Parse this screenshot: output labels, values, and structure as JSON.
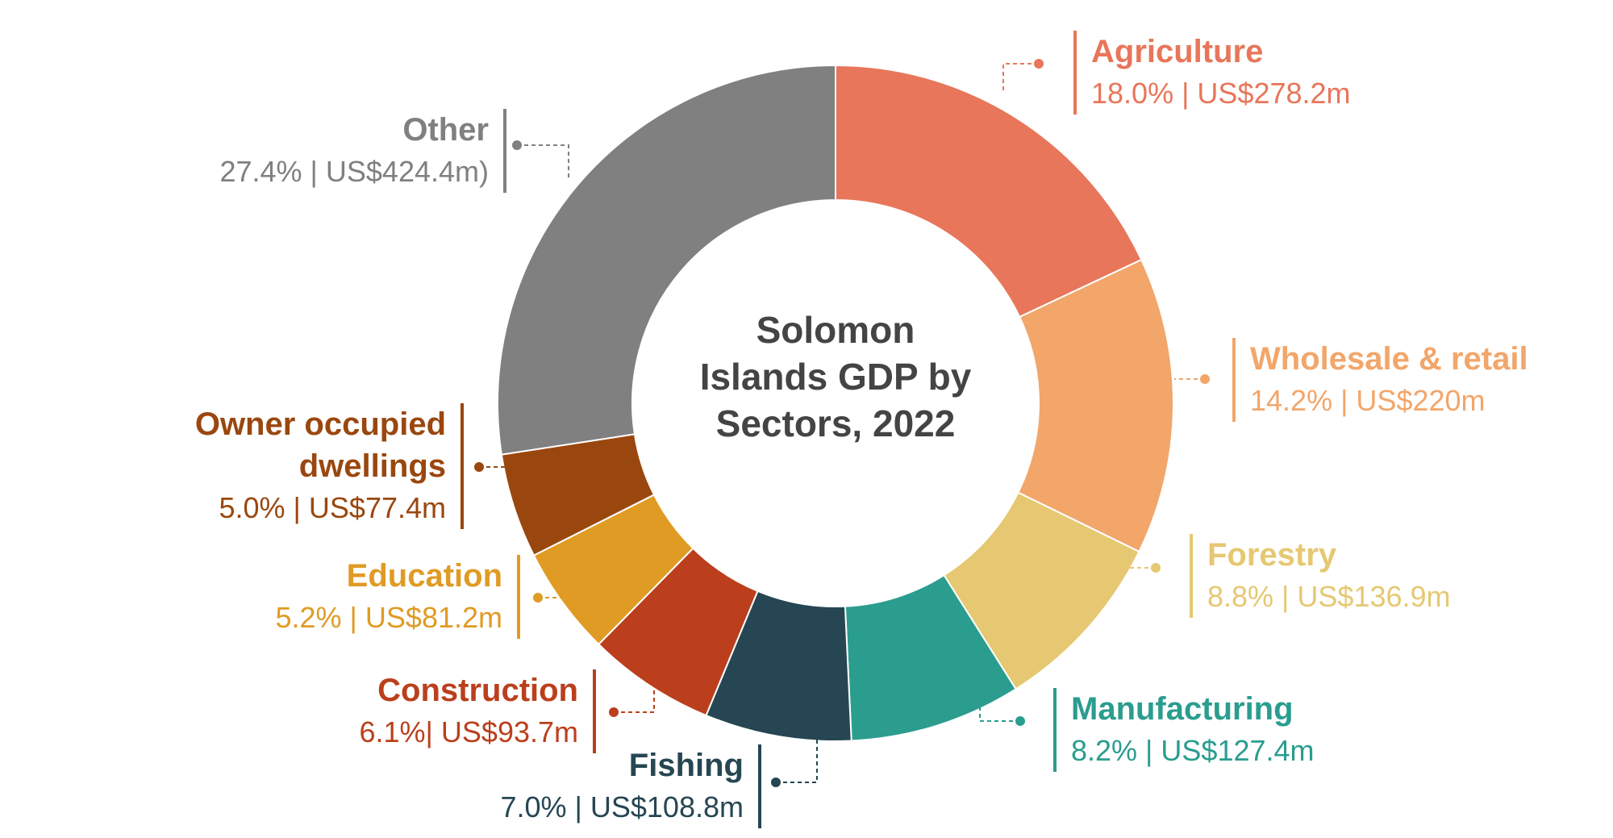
{
  "chart_data": {
    "type": "pie",
    "donut": true,
    "title": "Solomon Islands GDP by Sectors, 2022",
    "categories": [
      "Agriculture",
      "Wholesale & retail",
      "Forestry",
      "Manufacturing",
      "Fishing",
      "Construction",
      "Education",
      "Owner occupied dwellings",
      "Other"
    ],
    "values": [
      18.0,
      14.2,
      8.8,
      8.2,
      7.0,
      6.1,
      5.2,
      5.0,
      27.4
    ],
    "value_labels": [
      "18.0% | US$278.2m",
      "14.2% | US$220m",
      "8.8% | US$136.9m",
      "8.2% | US$127.4m",
      "7.0% | US$108.8m",
      "6.1%| US$93.7m",
      "5.2% | US$81.2m",
      "5.0% | US$77.4m",
      "27.4% | US$424.4m)"
    ],
    "colors": [
      "#e8765a",
      "#f2a66a",
      "#e6c872",
      "#2a9d8f",
      "#264653",
      "#bb3f1c",
      "#e09b24",
      "#9a470f",
      "#808080"
    ]
  }
}
